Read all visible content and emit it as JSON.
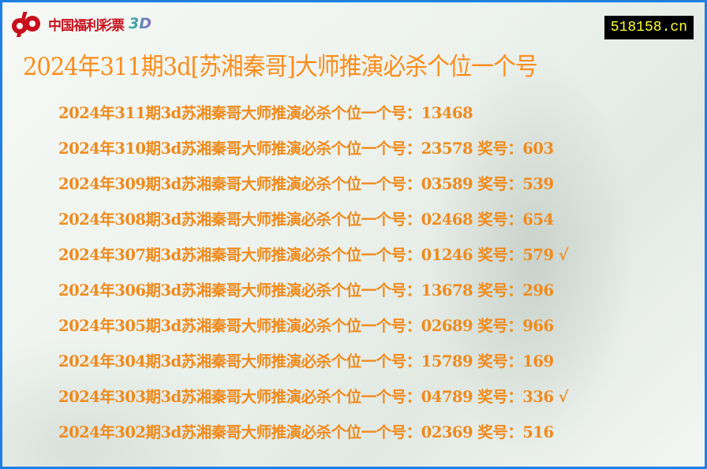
{
  "logo": {
    "text": "中国福利彩票",
    "suffix": "3D",
    "brand_color": "#c8101c"
  },
  "site_badge": "518158.cn",
  "page_title": "2024年311期3d[苏湘秦哥]大师推演必杀个位一个号",
  "accent_color": "#f08a1c",
  "rows": [
    "2024年311期3d苏湘秦哥大师推演必杀个位一个号：13468",
    "2024年310期3d苏湘秦哥大师推演必杀个位一个号：23578 奖号：603",
    "2024年309期3d苏湘秦哥大师推演必杀个位一个号：03589 奖号：539",
    "2024年308期3d苏湘秦哥大师推演必杀个位一个号：02468 奖号：654",
    "2024年307期3d苏湘秦哥大师推演必杀个位一个号：01246 奖号：579 √",
    "2024年306期3d苏湘秦哥大师推演必杀个位一个号：13678 奖号：296",
    "2024年305期3d苏湘秦哥大师推演必杀个位一个号：02689 奖号：966",
    "2024年304期3d苏湘秦哥大师推演必杀个位一个号：15789 奖号：169",
    "2024年303期3d苏湘秦哥大师推演必杀个位一个号：04789 奖号：336 √",
    "2024年302期3d苏湘秦哥大师推演必杀个位一个号：02369 奖号：516"
  ]
}
